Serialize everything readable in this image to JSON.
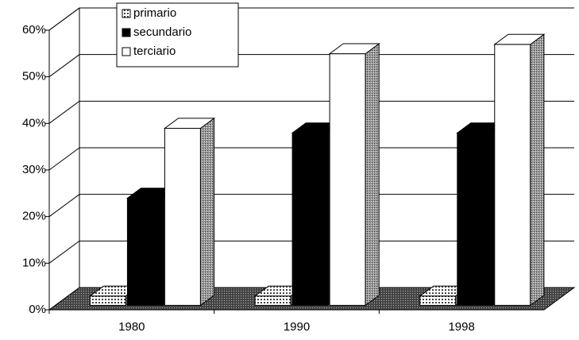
{
  "chart_data": {
    "type": "bar3d",
    "categories": [
      "1980",
      "1990",
      "1998"
    ],
    "series": [
      {
        "name": "primario",
        "color": "#dddddd",
        "values": [
          2,
          2,
          2
        ]
      },
      {
        "name": "secundario",
        "color": "#000000",
        "values": [
          23,
          37,
          37
        ]
      },
      {
        "name": "terciario",
        "color": "#ffffff",
        "values": [
          38,
          54,
          56
        ]
      }
    ],
    "ylim": [
      0,
      60
    ],
    "yticks": [
      {
        "value": 0,
        "label": "0%"
      },
      {
        "value": 10,
        "label": "10%"
      },
      {
        "value": 20,
        "label": "20%"
      },
      {
        "value": 30,
        "label": "30%"
      },
      {
        "value": 40,
        "label": "40%"
      },
      {
        "value": 50,
        "label": "50%"
      },
      {
        "value": 60,
        "label": "60%"
      }
    ],
    "grid": true
  }
}
